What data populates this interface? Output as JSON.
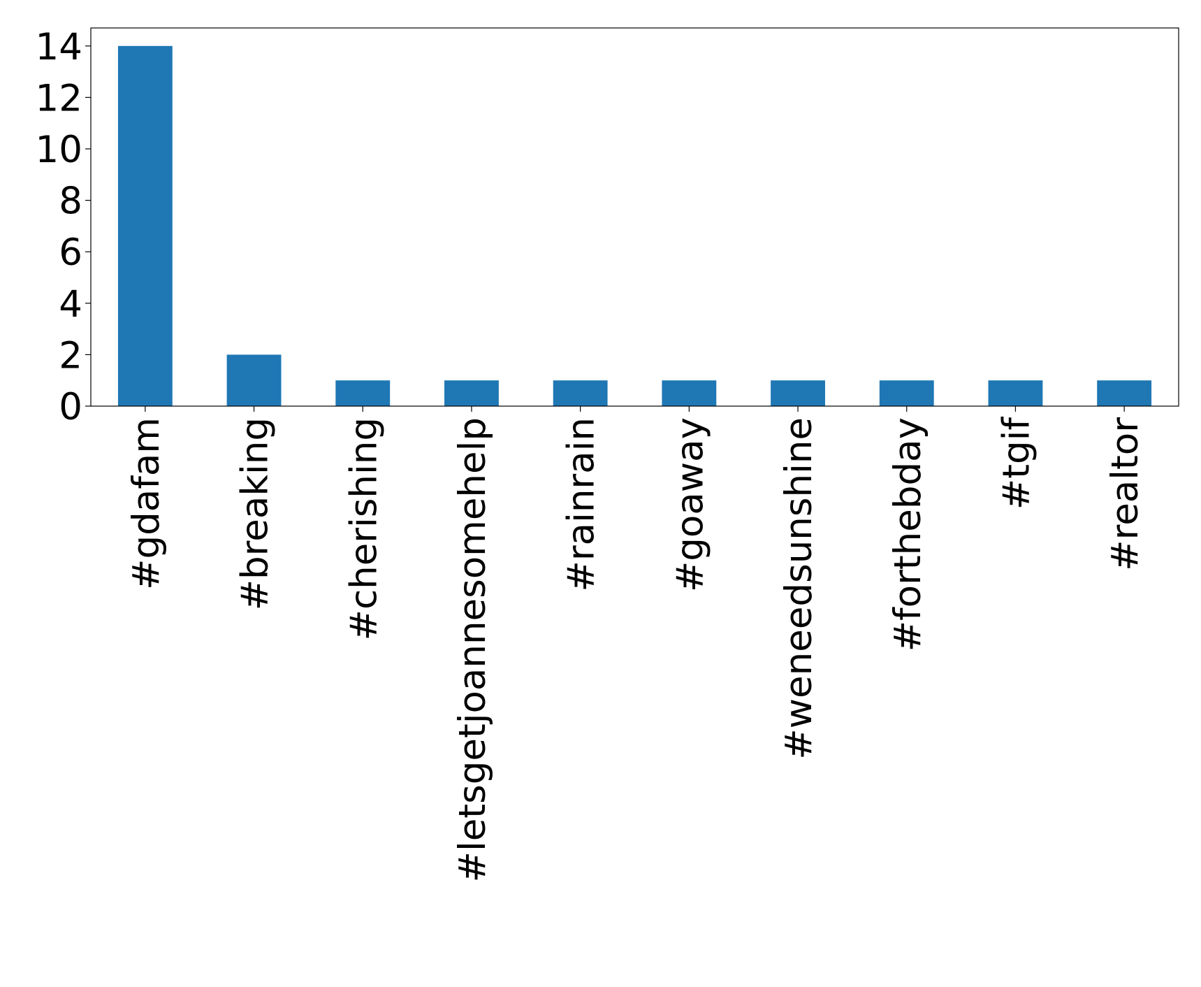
{
  "chart_data": {
    "type": "bar",
    "categories": [
      "#gdafam",
      "#breaking",
      "#cherishing",
      "#letsgetjoannesomehelp",
      "#rainrain",
      "#goaway",
      "#weneedsunshine",
      "#forthebday",
      "#tgif",
      "#realtor"
    ],
    "values": [
      14,
      2,
      1,
      1,
      1,
      1,
      1,
      1,
      1,
      1
    ],
    "color": "#1f77b4",
    "ylim": [
      0,
      14.7
    ],
    "yticks": [
      0,
      2,
      4,
      6,
      8,
      10,
      12,
      14
    ],
    "grid": false
  }
}
